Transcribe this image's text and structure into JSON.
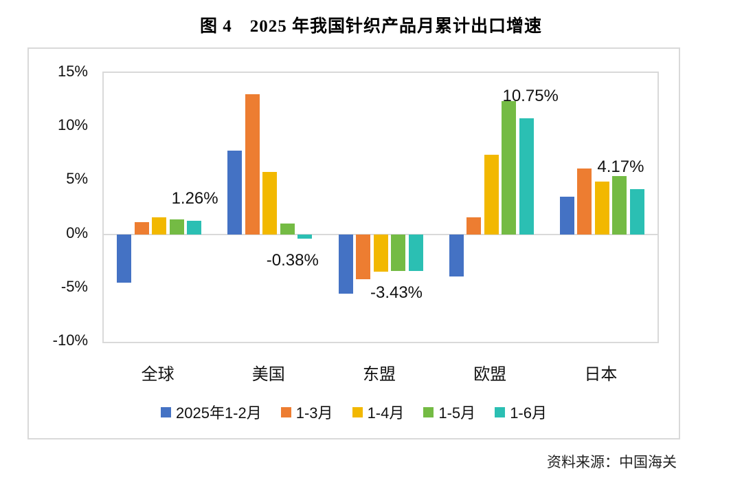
{
  "title": "图 4　2025 年我国针织产品月累计出口增速",
  "source": "资料来源：中国海关",
  "chart_data": {
    "type": "bar",
    "title": "图 4　2025 年我国针织产品月累计出口增速",
    "categories": [
      "全球",
      "美国",
      "东盟",
      "欧盟",
      "日本"
    ],
    "series": [
      {
        "name": "2025年1-2月",
        "color": "#4472C4",
        "values": [
          -4.5,
          7.8,
          -5.5,
          -3.9,
          3.5
        ]
      },
      {
        "name": "1-3月",
        "color": "#ED7D31",
        "values": [
          1.1,
          13.0,
          -4.2,
          1.6,
          6.1
        ]
      },
      {
        "name": "1-4月",
        "color": "#F2B800",
        "values": [
          1.6,
          5.8,
          -3.5,
          7.4,
          4.9
        ]
      },
      {
        "name": "1-5月",
        "color": "#74BB44",
        "values": [
          1.35,
          1.0,
          -3.4,
          12.4,
          5.4
        ]
      },
      {
        "name": "1-6月",
        "color": "#2BBFB3",
        "values": [
          1.26,
          -0.38,
          -3.43,
          10.75,
          4.17
        ]
      }
    ],
    "ylim": [
      -10,
      15
    ],
    "yticks": [
      15,
      10,
      5,
      0,
      -5,
      -10
    ],
    "ytick_labels": [
      "15%",
      "10%",
      "5%",
      "0%",
      "-5%",
      "-10%"
    ],
    "grid": false,
    "legend_position": "bottom",
    "axis_color": "#d9d9d9",
    "annotations": [
      {
        "text": "1.26%",
        "group": 0,
        "series": 4,
        "placement": "above",
        "dx": 1
      },
      {
        "text": "-0.38%",
        "group": 1,
        "series": 4,
        "placement": "below",
        "dx": -18
      },
      {
        "text": "-3.43%",
        "group": 2,
        "series": 4,
        "placement": "below",
        "dx": -28
      },
      {
        "text": "10.75%",
        "group": 3,
        "series": 4,
        "placement": "above",
        "dx": 6
      },
      {
        "text": "4.17%",
        "group": 4,
        "series": 4,
        "placement": "above",
        "dx": -24
      }
    ]
  }
}
